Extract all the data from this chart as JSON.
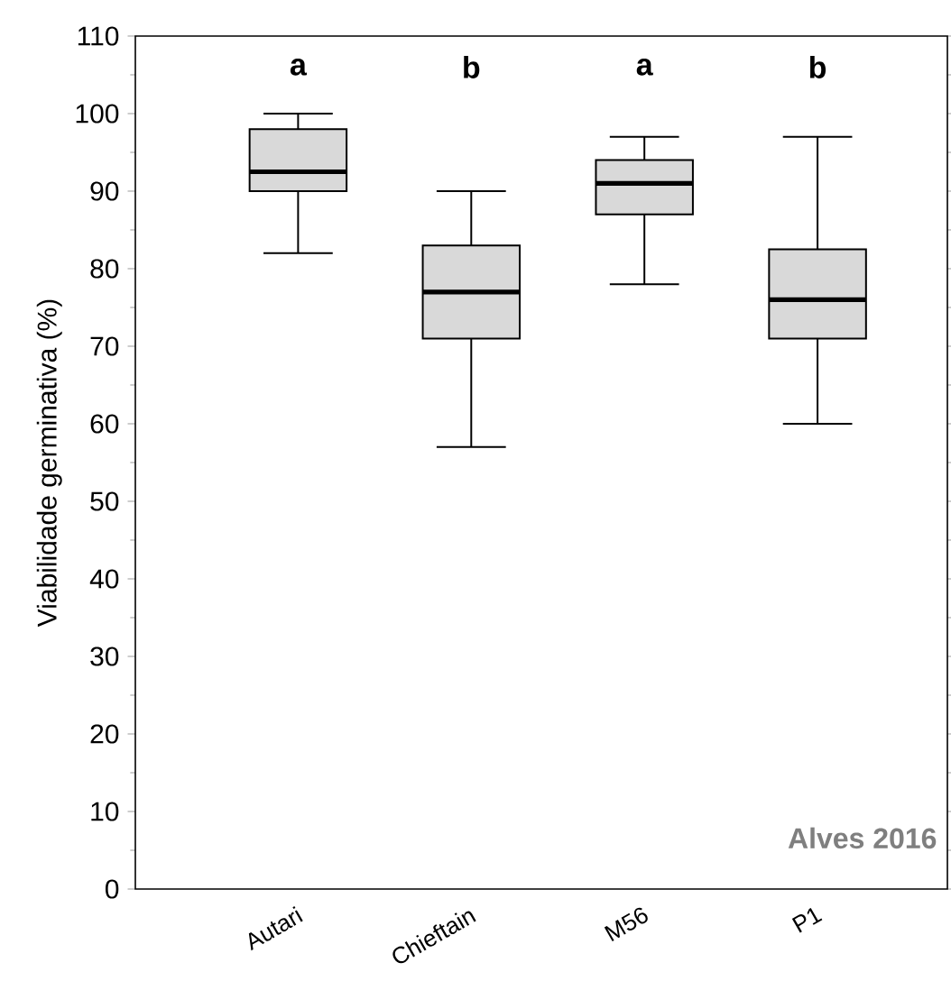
{
  "chart_data": {
    "type": "box",
    "ylabel": "Viabilidade germinativa (%)",
    "categories": [
      "Autari",
      "Chieftain",
      "M56",
      "P1"
    ],
    "boxes": [
      {
        "low": 82,
        "q1": 90,
        "median": 92.5,
        "q3": 98,
        "high": 100
      },
      {
        "low": 57,
        "q1": 71,
        "median": 77,
        "q3": 83,
        "high": 90
      },
      {
        "low": 78,
        "q1": 87,
        "median": 91,
        "q3": 94,
        "high": 97
      },
      {
        "low": 60,
        "q1": 71,
        "median": 76,
        "q3": 82.5,
        "high": 97
      }
    ],
    "color": "#d9d9d9",
    "ylim": [
      0,
      110
    ],
    "yticks": [
      0,
      10,
      20,
      30,
      40,
      50,
      60,
      70,
      80,
      90,
      100,
      110
    ],
    "annotations": [
      "a",
      "b",
      "a",
      "b",
      "Alves 2016"
    ]
  }
}
